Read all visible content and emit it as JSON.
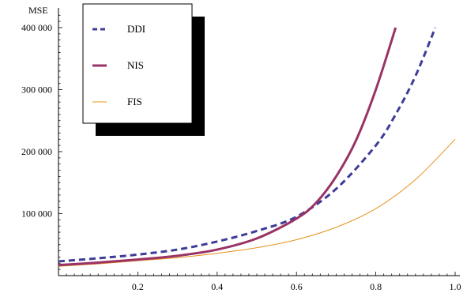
{
  "chart_data": {
    "type": "line",
    "title": "",
    "xlabel": "",
    "ylabel": "MSE",
    "xlim": [
      0,
      1.0
    ],
    "ylim": [
      0,
      420000
    ],
    "x_ticks": [
      0.2,
      0.4,
      0.6,
      0.8,
      1.0
    ],
    "x_tick_labels": [
      "0.2",
      "0.4",
      "0.6",
      "0.8",
      "1.0"
    ],
    "y_ticks": [
      100000,
      200000,
      300000,
      400000
    ],
    "y_tick_labels": [
      "100 000",
      "200 000",
      "300 000",
      "400 000"
    ],
    "grid": false,
    "legend_position": "top-left",
    "series": [
      {
        "name": "DDI",
        "color": "#3d3d99",
        "style": "dashed",
        "x": [
          0.0,
          0.1,
          0.2,
          0.3,
          0.4,
          0.5,
          0.6,
          0.7,
          0.8,
          0.85,
          0.9,
          0.95
        ],
        "y": [
          23000,
          28000,
          34000,
          42000,
          55000,
          72000,
          95000,
          140000,
          210000,
          260000,
          322000,
          400000
        ]
      },
      {
        "name": "NIS",
        "color": "#993366",
        "style": "solid-thick",
        "x": [
          0.0,
          0.1,
          0.2,
          0.3,
          0.4,
          0.5,
          0.6,
          0.65,
          0.7,
          0.75,
          0.8,
          0.85
        ],
        "y": [
          17000,
          21000,
          26000,
          32000,
          42000,
          60000,
          92000,
          118000,
          160000,
          218000,
          300000,
          400000
        ]
      },
      {
        "name": "FIS",
        "color": "#e8901a",
        "style": "solid-thin",
        "x": [
          0.0,
          0.1,
          0.2,
          0.3,
          0.4,
          0.5,
          0.6,
          0.7,
          0.8,
          0.9,
          1.0
        ],
        "y": [
          15000,
          19000,
          24000,
          29000,
          36000,
          45000,
          58000,
          78000,
          108000,
          155000,
          220000
        ]
      }
    ]
  }
}
